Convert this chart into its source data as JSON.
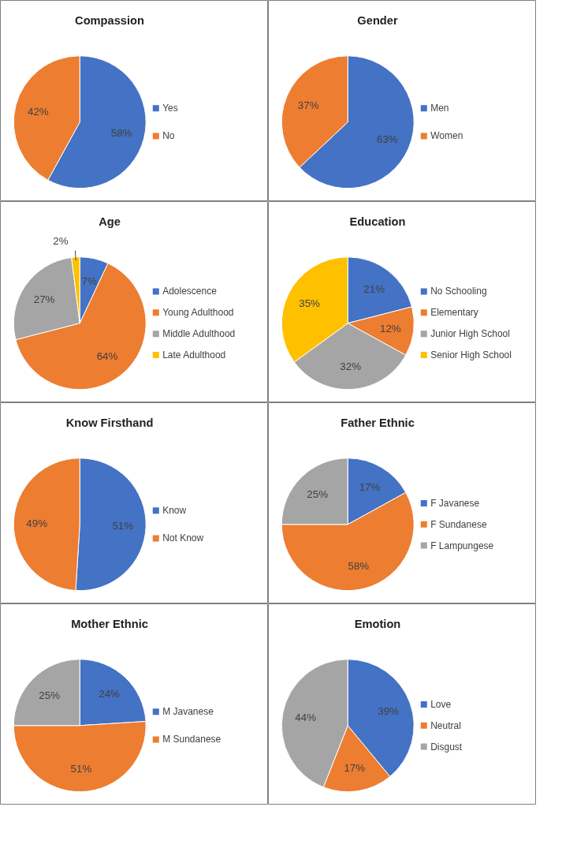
{
  "chart_data": [
    {
      "type": "pie",
      "title": "Compassion",
      "categories": [
        "Yes",
        "No"
      ],
      "values": [
        58,
        42
      ],
      "value_labels": [
        "58%",
        "42%"
      ],
      "colors": [
        "#4472c4",
        "#ed7d31"
      ],
      "legend": "right"
    },
    {
      "type": "pie",
      "title": "Gender",
      "categories": [
        "Men",
        "Women"
      ],
      "values": [
        63,
        37
      ],
      "value_labels": [
        "63%",
        "37%"
      ],
      "colors": [
        "#4472c4",
        "#ed7d31"
      ],
      "legend": "right"
    },
    {
      "type": "pie",
      "title": "Age",
      "categories": [
        "Adolescence",
        "Young Adulthood",
        "Middle Adulthood",
        "Late Adulthood"
      ],
      "values": [
        7,
        64,
        27,
        2
      ],
      "value_labels": [
        "7%",
        "64%",
        "27%",
        "2%"
      ],
      "colors": [
        "#4472c4",
        "#ed7d31",
        "#a5a5a5",
        "#ffc000"
      ],
      "legend": "right"
    },
    {
      "type": "pie",
      "title": "Education",
      "categories": [
        "No Schooling",
        "Elementary",
        "Junior High School",
        "Senior High School"
      ],
      "values": [
        21,
        12,
        32,
        35
      ],
      "value_labels": [
        "21%",
        "12%",
        "32%",
        "35%"
      ],
      "colors": [
        "#4472c4",
        "#ed7d31",
        "#a5a5a5",
        "#ffc000"
      ],
      "legend": "right"
    },
    {
      "type": "pie",
      "title": "Know Firsthand",
      "categories": [
        "Know",
        "Not Know"
      ],
      "values": [
        51,
        49
      ],
      "value_labels": [
        "51%",
        "49%"
      ],
      "colors": [
        "#4472c4",
        "#ed7d31"
      ],
      "legend": "right"
    },
    {
      "type": "pie",
      "title": "Father Ethnic",
      "categories": [
        "F Javanese",
        "F Sundanese",
        "F Lampungese"
      ],
      "values": [
        17,
        58,
        25
      ],
      "value_labels": [
        "17%",
        "58%",
        "25%"
      ],
      "colors": [
        "#4472c4",
        "#ed7d31",
        "#a5a5a5"
      ],
      "legend": "right"
    },
    {
      "type": "pie",
      "title": "Mother Ethnic",
      "categories": [
        "M Javanese",
        "M Sundanese",
        null
      ],
      "values": [
        24,
        51,
        25
      ],
      "value_labels": [
        "24%",
        "51%",
        "25%"
      ],
      "colors": [
        "#4472c4",
        "#ed7d31",
        "#a5a5a5"
      ],
      "legend": "right"
    },
    {
      "type": "pie",
      "title": "Emotion",
      "categories": [
        "Love",
        "Neutral",
        "Disgust"
      ],
      "values": [
        39,
        17,
        44
      ],
      "value_labels": [
        "39%",
        "17%",
        "44%"
      ],
      "colors": [
        "#4472c4",
        "#ed7d31",
        "#a5a5a5"
      ],
      "legend": "right"
    }
  ]
}
